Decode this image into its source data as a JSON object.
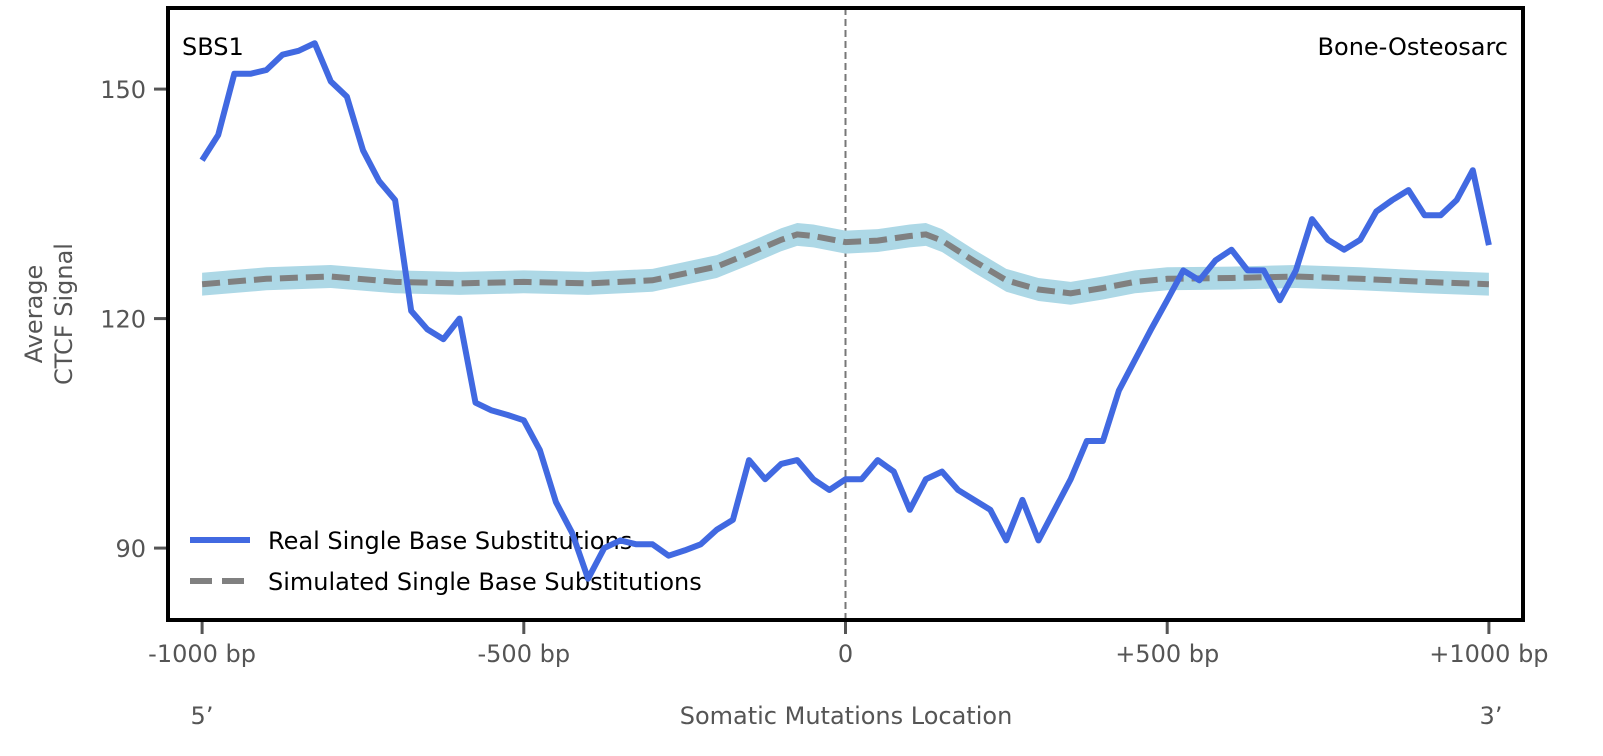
{
  "chart_data": {
    "type": "line",
    "top_left_label": "SBS1",
    "top_right_label": "Bone-Osteosarc",
    "xlabel": "Somatic Mutations Location",
    "ylabel_lines": [
      "Average",
      "CTCF Signal"
    ],
    "x_end_labels": {
      "left": "5’",
      "right": "3’"
    },
    "xlim": [
      -1053,
      1053
    ],
    "ylim": [
      80.6,
      160.6
    ],
    "x_ticks": [
      -1000,
      -500,
      0,
      500,
      1000
    ],
    "x_tick_labels": [
      "-1000 bp",
      "-500 bp",
      "0",
      "+500 bp",
      "+1000 bp"
    ],
    "y_ticks": [
      90,
      120,
      150
    ],
    "y_tick_labels": [
      "90",
      "120",
      "150"
    ],
    "vertical_reference_line": 0,
    "legend_position": "bottom-left",
    "colors": {
      "real": "#4169e1",
      "simulated": "#808080",
      "band": "#add8e6"
    },
    "series": [
      {
        "name": "Real Single Base Substitutions",
        "style": "solid",
        "x": [
          -1000,
          -975,
          -950,
          -925,
          -900,
          -875,
          -850,
          -825,
          -800,
          -775,
          -750,
          -725,
          -700,
          -675,
          -650,
          -625,
          -600,
          -575,
          -550,
          -525,
          -500,
          -475,
          -450,
          -425,
          -400,
          -375,
          -350,
          -325,
          -300,
          -275,
          -250,
          -225,
          -200,
          -175,
          -150,
          -125,
          -100,
          -75,
          -50,
          -25,
          0,
          25,
          50,
          75,
          100,
          125,
          150,
          175,
          200,
          225,
          250,
          275,
          300,
          325,
          350,
          375,
          400,
          425,
          450,
          475,
          500,
          525,
          550,
          575,
          600,
          625,
          650,
          675,
          700,
          725,
          750,
          775,
          800,
          825,
          850,
          875,
          900,
          925,
          950,
          975,
          1000
        ],
        "y": [
          140.7,
          144,
          152,
          152,
          152.5,
          154.5,
          155,
          156,
          151,
          149,
          142,
          138,
          135.5,
          121,
          118.6,
          117.3,
          120,
          109,
          108,
          107.4,
          106.7,
          102.8,
          96,
          92,
          86,
          90,
          91,
          90.5,
          90.5,
          89,
          89.7,
          90.5,
          92.4,
          93.7,
          101.5,
          99,
          101,
          101.5,
          99,
          97.6,
          99,
          99,
          101.5,
          100,
          95,
          99,
          100,
          97.6,
          96.3,
          95,
          91,
          96.3,
          91,
          95,
          99,
          104,
          104,
          110.6,
          114.6,
          118.6,
          122.4,
          126.3,
          125,
          127.6,
          129,
          126.3,
          126.3,
          122.4,
          126.3,
          133,
          130.3,
          129,
          130.3,
          134,
          135.5,
          136.8,
          133.5,
          133.5,
          135.5,
          139.4,
          129.6
        ]
      },
      {
        "name": "Simulated Single Base Substitutions",
        "style": "dashed",
        "band_halfwidth": 1.5,
        "x": [
          -1000,
          -900,
          -800,
          -700,
          -600,
          -500,
          -400,
          -300,
          -200,
          -150,
          -100,
          -75,
          -50,
          0,
          50,
          100,
          125,
          150,
          200,
          250,
          300,
          350,
          400,
          450,
          500,
          600,
          700,
          800,
          900,
          1000
        ],
        "y": [
          124.5,
          125.2,
          125.5,
          124.8,
          124.6,
          124.8,
          124.6,
          125,
          126.8,
          128.5,
          130.3,
          131,
          130.8,
          130,
          130.2,
          130.8,
          131,
          130.2,
          127.5,
          125,
          123.8,
          123.3,
          124,
          124.8,
          125.2,
          125.3,
          125.5,
          125.2,
          124.8,
          124.5
        ]
      }
    ]
  }
}
